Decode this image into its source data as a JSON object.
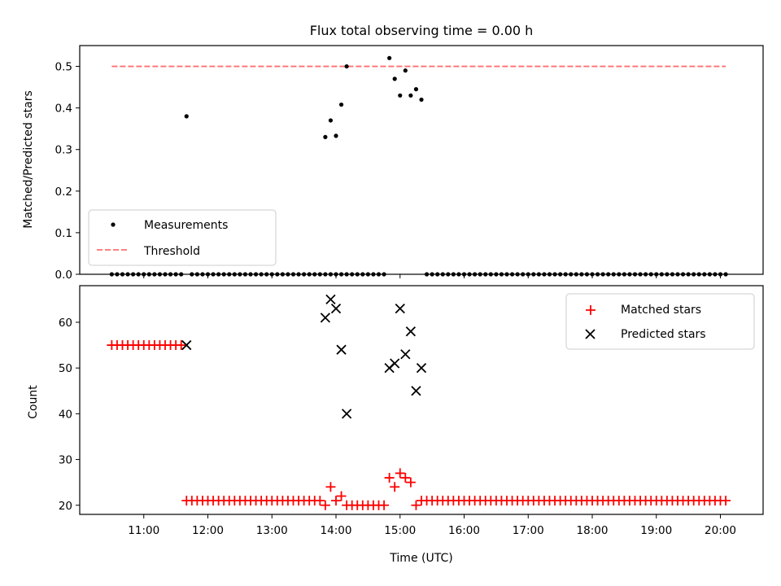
{
  "chart_data": [
    {
      "type": "scatter",
      "title": "Flux total observing time = 0.00 h",
      "xlabel": "",
      "ylabel": "Matched/Predicted stars",
      "ylim": [
        0,
        0.55
      ],
      "yticks": [
        0.0,
        0.1,
        0.2,
        0.3,
        0.4,
        0.5
      ],
      "ytick_labels": [
        "0.0",
        "0.1",
        "0.2",
        "0.3",
        "0.4",
        "0.5"
      ],
      "xlim": [
        "10:00",
        "20:40"
      ],
      "legend": {
        "placement": "lower-left",
        "entries": [
          "Measurements",
          "Threshold"
        ]
      },
      "colors": {
        "measurements": "#000000",
        "threshold": "#ff7070"
      },
      "threshold": {
        "name": "Threshold",
        "y": 0.5,
        "x_range": [
          "10:30",
          "20:05"
        ]
      },
      "series": [
        {
          "name": "Measurements",
          "points": [
            [
              "10:30",
              0
            ],
            [
              "10:35",
              0
            ],
            [
              "10:40",
              0
            ],
            [
              "10:45",
              0
            ],
            [
              "10:50",
              0
            ],
            [
              "10:55",
              0
            ],
            [
              "11:00",
              0
            ],
            [
              "11:05",
              0
            ],
            [
              "11:10",
              0
            ],
            [
              "11:15",
              0
            ],
            [
              "11:20",
              0
            ],
            [
              "11:25",
              0
            ],
            [
              "11:30",
              0
            ],
            [
              "11:35",
              0
            ],
            [
              "11:40",
              0.38
            ],
            [
              "11:45",
              0
            ],
            [
              "11:50",
              0
            ],
            [
              "11:55",
              0
            ],
            [
              "12:00",
              0
            ],
            [
              "12:05",
              0
            ],
            [
              "12:10",
              0
            ],
            [
              "12:15",
              0
            ],
            [
              "12:20",
              0
            ],
            [
              "12:25",
              0
            ],
            [
              "12:30",
              0
            ],
            [
              "12:35",
              0
            ],
            [
              "12:40",
              0
            ],
            [
              "12:45",
              0
            ],
            [
              "12:50",
              0
            ],
            [
              "12:55",
              0
            ],
            [
              "13:00",
              0
            ],
            [
              "13:05",
              0
            ],
            [
              "13:10",
              0
            ],
            [
              "13:15",
              0
            ],
            [
              "13:20",
              0
            ],
            [
              "13:25",
              0
            ],
            [
              "13:30",
              0
            ],
            [
              "13:35",
              0
            ],
            [
              "13:40",
              0
            ],
            [
              "13:45",
              0
            ],
            [
              "13:50",
              0
            ],
            [
              "13:55",
              0
            ],
            [
              "14:00",
              0
            ],
            [
              "14:05",
              0
            ],
            [
              "14:10",
              0
            ],
            [
              "14:15",
              0
            ],
            [
              "13:50",
              0.33
            ],
            [
              "13:55",
              0.37
            ],
            [
              "14:00",
              0.333
            ],
            [
              "14:05",
              0.408
            ],
            [
              "14:10",
              0.5
            ],
            [
              "14:20",
              0
            ],
            [
              "14:25",
              0
            ],
            [
              "14:30",
              0
            ],
            [
              "14:35",
              0
            ],
            [
              "14:40",
              0
            ],
            [
              "14:45",
              0
            ],
            [
              "14:50",
              0.52
            ],
            [
              "14:55",
              0.47
            ],
            [
              "15:00",
              0.43
            ],
            [
              "15:05",
              0.49
            ],
            [
              "15:10",
              0.43
            ],
            [
              "15:15",
              0.445
            ],
            [
              "15:20",
              0.42
            ],
            [
              "15:25",
              0
            ],
            [
              "15:30",
              0
            ],
            [
              "15:35",
              0
            ],
            [
              "15:40",
              0
            ],
            [
              "15:45",
              0
            ],
            [
              "15:50",
              0
            ],
            [
              "15:55",
              0
            ],
            [
              "16:00",
              0
            ],
            [
              "16:05",
              0
            ],
            [
              "16:10",
              0
            ],
            [
              "16:15",
              0
            ],
            [
              "16:20",
              0
            ],
            [
              "16:25",
              0
            ],
            [
              "16:30",
              0
            ],
            [
              "16:35",
              0
            ],
            [
              "16:40",
              0
            ],
            [
              "16:45",
              0
            ],
            [
              "16:50",
              0
            ],
            [
              "16:55",
              0
            ],
            [
              "17:00",
              0
            ],
            [
              "17:05",
              0
            ],
            [
              "17:10",
              0
            ],
            [
              "17:15",
              0
            ],
            [
              "17:20",
              0
            ],
            [
              "17:25",
              0
            ],
            [
              "17:30",
              0
            ],
            [
              "17:35",
              0
            ],
            [
              "17:40",
              0
            ],
            [
              "17:45",
              0
            ],
            [
              "17:50",
              0
            ],
            [
              "17:55",
              0
            ],
            [
              "18:00",
              0
            ],
            [
              "18:05",
              0
            ],
            [
              "18:10",
              0
            ],
            [
              "18:15",
              0
            ],
            [
              "18:20",
              0
            ],
            [
              "18:25",
              0
            ],
            [
              "18:30",
              0
            ],
            [
              "18:35",
              0
            ],
            [
              "18:40",
              0
            ],
            [
              "18:45",
              0
            ],
            [
              "18:50",
              0
            ],
            [
              "18:55",
              0
            ],
            [
              "19:00",
              0
            ],
            [
              "19:05",
              0
            ],
            [
              "19:10",
              0
            ],
            [
              "19:15",
              0
            ],
            [
              "19:20",
              0
            ],
            [
              "19:25",
              0
            ],
            [
              "19:30",
              0
            ],
            [
              "19:35",
              0
            ],
            [
              "19:40",
              0
            ],
            [
              "19:45",
              0
            ],
            [
              "19:50",
              0
            ],
            [
              "19:55",
              0
            ],
            [
              "20:00",
              0
            ],
            [
              "20:05",
              0
            ]
          ]
        }
      ]
    },
    {
      "type": "scatter",
      "title": "",
      "xlabel": "Time (UTC)",
      "ylabel": "Count",
      "ylim": [
        18,
        68
      ],
      "yticks": [
        20,
        30,
        40,
        50,
        60
      ],
      "ytick_labels": [
        "20",
        "30",
        "40",
        "50",
        "60"
      ],
      "xlim": [
        "10:00",
        "20:40"
      ],
      "xticks": [
        "11:00",
        "12:00",
        "13:00",
        "14:00",
        "15:00",
        "16:00",
        "17:00",
        "18:00",
        "19:00",
        "20:00"
      ],
      "legend": {
        "placement": "upper-right",
        "entries": [
          "Matched stars",
          "Predicted stars"
        ]
      },
      "colors": {
        "matched": "#ff0000",
        "predicted": "#000000"
      },
      "series": [
        {
          "name": "Matched stars",
          "points": [
            [
              "10:30",
              55
            ],
            [
              "10:35",
              55
            ],
            [
              "10:40",
              55
            ],
            [
              "10:45",
              55
            ],
            [
              "10:50",
              55
            ],
            [
              "10:55",
              55
            ],
            [
              "11:00",
              55
            ],
            [
              "11:05",
              55
            ],
            [
              "11:10",
              55
            ],
            [
              "11:15",
              55
            ],
            [
              "11:20",
              55
            ],
            [
              "11:25",
              55
            ],
            [
              "11:30",
              55
            ],
            [
              "11:35",
              55
            ],
            [
              "11:40",
              21
            ],
            [
              "11:45",
              21
            ],
            [
              "11:50",
              21
            ],
            [
              "11:55",
              21
            ],
            [
              "12:00",
              21
            ],
            [
              "12:05",
              21
            ],
            [
              "12:10",
              21
            ],
            [
              "12:15",
              21
            ],
            [
              "12:20",
              21
            ],
            [
              "12:25",
              21
            ],
            [
              "12:30",
              21
            ],
            [
              "12:35",
              21
            ],
            [
              "12:40",
              21
            ],
            [
              "12:45",
              21
            ],
            [
              "12:50",
              21
            ],
            [
              "12:55",
              21
            ],
            [
              "13:00",
              21
            ],
            [
              "13:05",
              21
            ],
            [
              "13:10",
              21
            ],
            [
              "13:15",
              21
            ],
            [
              "13:20",
              21
            ],
            [
              "13:25",
              21
            ],
            [
              "13:30",
              21
            ],
            [
              "13:35",
              21
            ],
            [
              "13:40",
              21
            ],
            [
              "13:45",
              21
            ],
            [
              "13:50",
              20
            ],
            [
              "13:55",
              24
            ],
            [
              "14:00",
              21
            ],
            [
              "14:05",
              22
            ],
            [
              "14:10",
              20
            ],
            [
              "14:15",
              20
            ],
            [
              "14:20",
              20
            ],
            [
              "14:25",
              20
            ],
            [
              "14:30",
              20
            ],
            [
              "14:35",
              20
            ],
            [
              "14:40",
              20
            ],
            [
              "14:45",
              20
            ],
            [
              "14:50",
              26
            ],
            [
              "14:55",
              24
            ],
            [
              "15:00",
              27
            ],
            [
              "15:05",
              26
            ],
            [
              "15:10",
              25
            ],
            [
              "15:15",
              20
            ],
            [
              "15:20",
              21
            ],
            [
              "15:25",
              21
            ],
            [
              "15:30",
              21
            ],
            [
              "15:35",
              21
            ],
            [
              "15:40",
              21
            ],
            [
              "15:45",
              21
            ],
            [
              "15:50",
              21
            ],
            [
              "15:55",
              21
            ],
            [
              "16:00",
              21
            ],
            [
              "16:05",
              21
            ],
            [
              "16:10",
              21
            ],
            [
              "16:15",
              21
            ],
            [
              "16:20",
              21
            ],
            [
              "16:25",
              21
            ],
            [
              "16:30",
              21
            ],
            [
              "16:35",
              21
            ],
            [
              "16:40",
              21
            ],
            [
              "16:45",
              21
            ],
            [
              "16:50",
              21
            ],
            [
              "16:55",
              21
            ],
            [
              "17:00",
              21
            ],
            [
              "17:05",
              21
            ],
            [
              "17:10",
              21
            ],
            [
              "17:15",
              21
            ],
            [
              "17:20",
              21
            ],
            [
              "17:25",
              21
            ],
            [
              "17:30",
              21
            ],
            [
              "17:35",
              21
            ],
            [
              "17:40",
              21
            ],
            [
              "17:45",
              21
            ],
            [
              "17:50",
              21
            ],
            [
              "17:55",
              21
            ],
            [
              "18:00",
              21
            ],
            [
              "18:05",
              21
            ],
            [
              "18:10",
              21
            ],
            [
              "18:15",
              21
            ],
            [
              "18:20",
              21
            ],
            [
              "18:25",
              21
            ],
            [
              "18:30",
              21
            ],
            [
              "18:35",
              21
            ],
            [
              "18:40",
              21
            ],
            [
              "18:45",
              21
            ],
            [
              "18:50",
              21
            ],
            [
              "18:55",
              21
            ],
            [
              "19:00",
              21
            ],
            [
              "19:05",
              21
            ],
            [
              "19:10",
              21
            ],
            [
              "19:15",
              21
            ],
            [
              "19:20",
              21
            ],
            [
              "19:25",
              21
            ],
            [
              "19:30",
              21
            ],
            [
              "19:35",
              21
            ],
            [
              "19:40",
              21
            ],
            [
              "19:45",
              21
            ],
            [
              "19:50",
              21
            ],
            [
              "19:55",
              21
            ],
            [
              "20:00",
              21
            ],
            [
              "20:05",
              21
            ]
          ]
        },
        {
          "name": "Predicted stars",
          "points": [
            [
              "11:40",
              55
            ],
            [
              "13:50",
              61
            ],
            [
              "13:55",
              65
            ],
            [
              "14:00",
              63
            ],
            [
              "14:05",
              54
            ],
            [
              "14:10",
              40
            ],
            [
              "14:50",
              50
            ],
            [
              "14:55",
              51
            ],
            [
              "15:00",
              63
            ],
            [
              "15:05",
              53
            ],
            [
              "15:10",
              58
            ],
            [
              "15:15",
              45
            ],
            [
              "15:20",
              50
            ]
          ]
        }
      ]
    }
  ]
}
